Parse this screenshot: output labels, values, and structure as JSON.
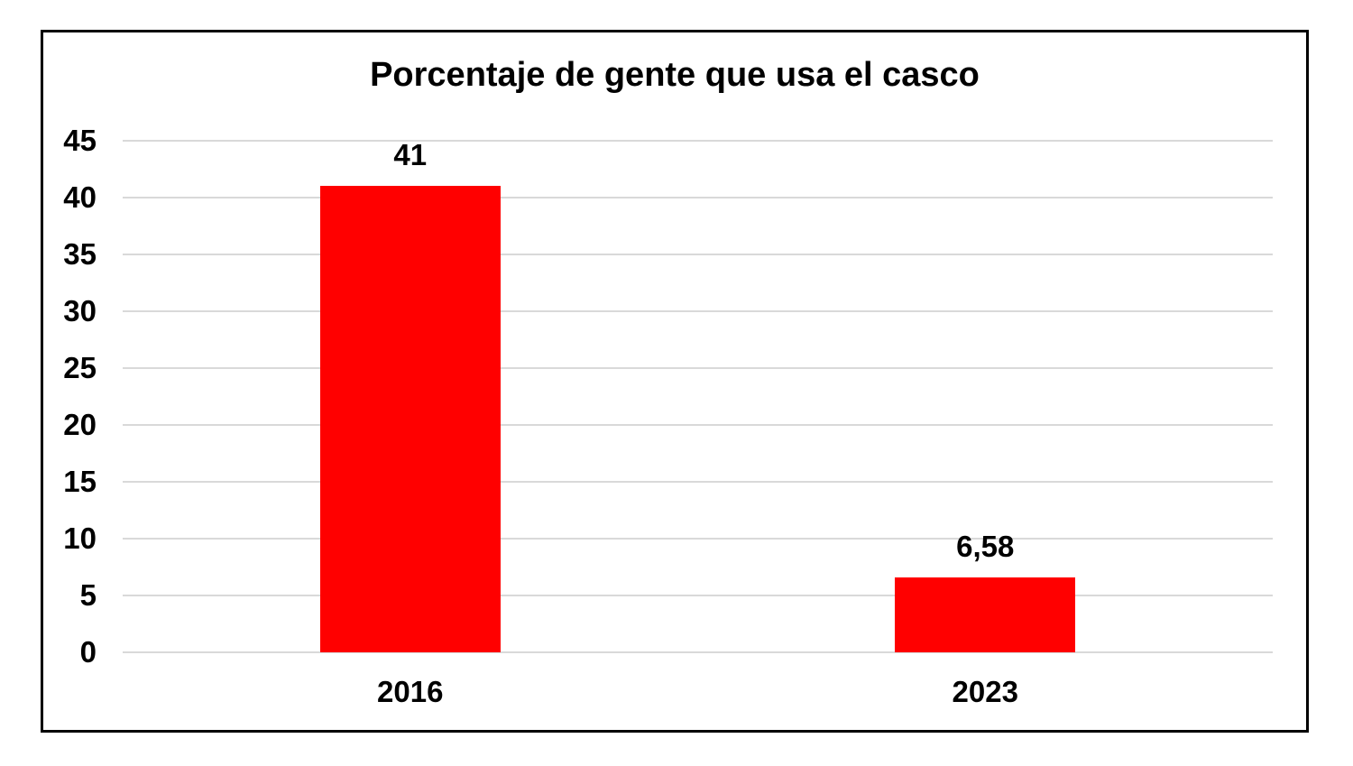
{
  "chart_data": {
    "type": "bar",
    "title": "Porcentaje de gente que usa el casco",
    "categories": [
      "2016",
      "2023"
    ],
    "values": [
      41,
      6.58
    ],
    "value_labels": [
      "41",
      "6,58"
    ],
    "yticks": [
      0,
      5,
      10,
      15,
      20,
      25,
      30,
      35,
      40,
      45
    ],
    "ylim": [
      0,
      45
    ],
    "xlabel": "",
    "ylabel": "",
    "grid": "horizontal",
    "legend": "none",
    "bar_color": "#FF0000",
    "gridline_color": "#D9D9D9",
    "text_color": "#000000",
    "frame_border_color": "#000000",
    "background_color": "#FFFFFF"
  }
}
